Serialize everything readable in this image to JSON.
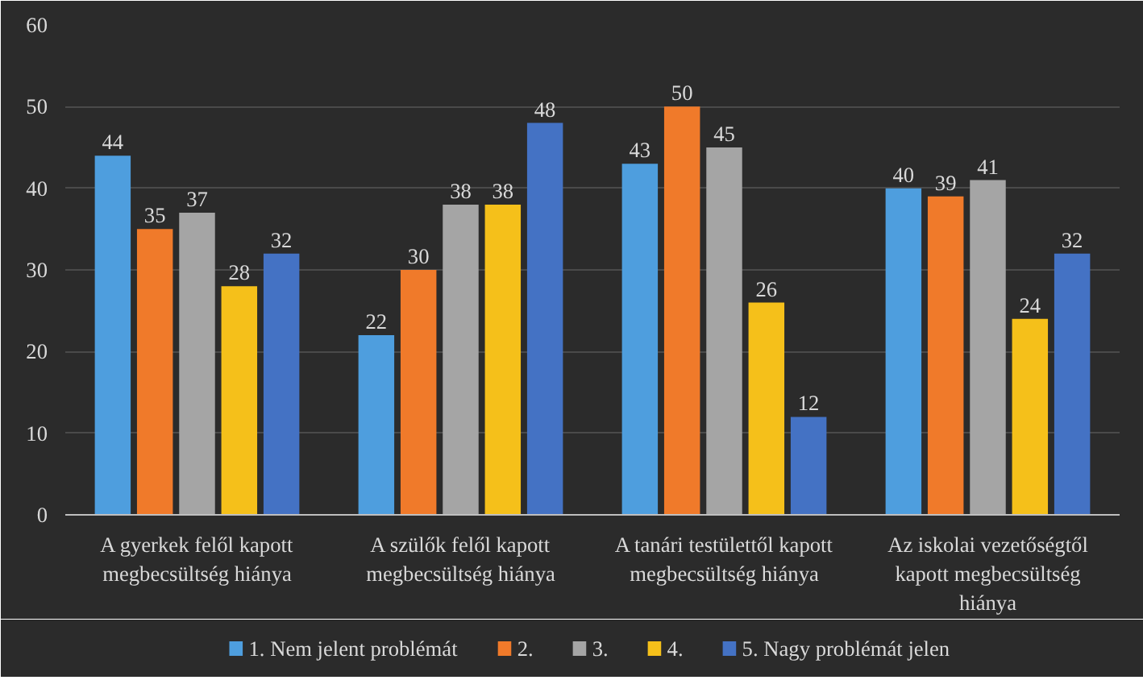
{
  "chart_data": {
    "type": "bar",
    "categories": [
      "A gyerkek felől kapott\nmegbecsültség hiánya",
      "A szülők felől kapott\nmegbecsültség hiánya",
      "A tanári testülettől kapott\nmegbecsültség hiánya",
      "Az iskolai vezetőségtől\nkapott megbecsültség\nhiánya"
    ],
    "series": [
      {
        "name": "1. Nem jelent problémát",
        "color": "#4e9ede",
        "values": [
          44,
          22,
          43,
          40
        ]
      },
      {
        "name": "2.",
        "color": "#f07a2a",
        "values": [
          35,
          30,
          50,
          39
        ]
      },
      {
        "name": "3.",
        "color": "#a5a5a5",
        "values": [
          37,
          38,
          45,
          41
        ]
      },
      {
        "name": "4.",
        "color": "#f5c01a",
        "values": [
          28,
          38,
          26,
          24
        ]
      },
      {
        "name": "5. Nagy problémát jelen",
        "color": "#4472c4",
        "values": [
          32,
          48,
          12,
          32
        ]
      }
    ],
    "ylim": [
      0,
      60
    ],
    "yticks": [
      0,
      10,
      20,
      30,
      40,
      50,
      60
    ],
    "grid": "y",
    "data_labels": true,
    "legend": "bottom"
  }
}
